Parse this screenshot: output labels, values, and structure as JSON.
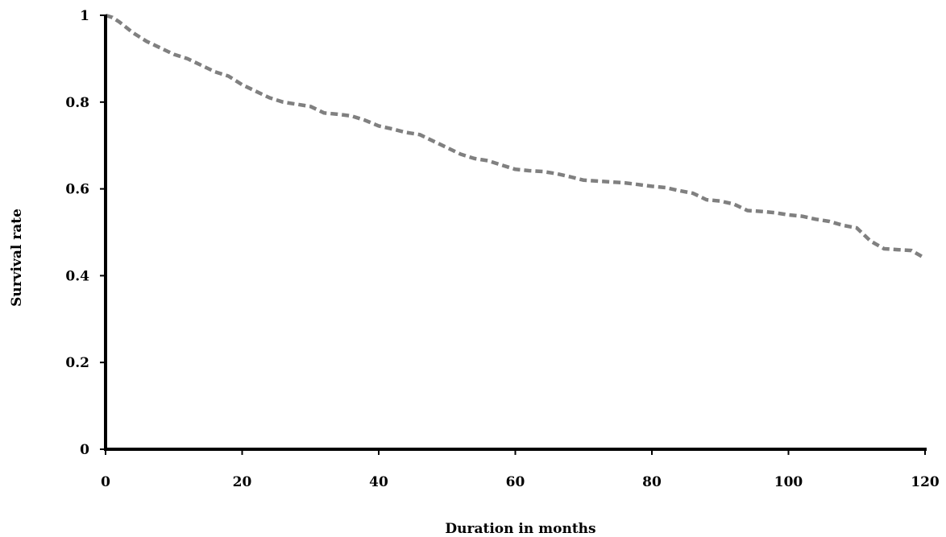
{
  "chart_data": {
    "type": "line",
    "title": "",
    "xlabel": "Duration in months",
    "ylabel": "Survival rate",
    "xlim": [
      0,
      120
    ],
    "ylim": [
      0,
      1
    ],
    "x_ticks": [
      "0",
      "20",
      "40",
      "60",
      "80",
      "100",
      "120"
    ],
    "y_ticks": [
      "0",
      "0.2",
      "0.4",
      "0.6",
      "0.8",
      "1"
    ],
    "grid": false,
    "legend": "none",
    "series": [
      {
        "line_style": "dashed",
        "color": "#808080",
        "x": [
          0,
          1,
          2,
          4,
          6,
          8,
          10,
          12,
          14,
          16,
          18,
          20,
          22,
          24,
          26,
          28,
          30,
          32,
          34,
          36,
          38,
          40,
          42,
          44,
          46,
          48,
          50,
          52,
          54,
          56,
          58,
          60,
          62,
          64,
          66,
          68,
          70,
          72,
          74,
          76,
          78,
          80,
          82,
          84,
          86,
          88,
          90,
          92,
          94,
          96,
          98,
          100,
          102,
          104,
          106,
          108,
          110,
          112,
          114,
          116,
          118,
          120
        ],
        "y": [
          1.0,
          0.995,
          0.985,
          0.96,
          0.94,
          0.925,
          0.91,
          0.9,
          0.885,
          0.87,
          0.86,
          0.84,
          0.825,
          0.81,
          0.8,
          0.795,
          0.79,
          0.775,
          0.772,
          0.768,
          0.758,
          0.745,
          0.738,
          0.73,
          0.725,
          0.71,
          0.695,
          0.68,
          0.67,
          0.665,
          0.655,
          0.645,
          0.642,
          0.64,
          0.635,
          0.628,
          0.62,
          0.618,
          0.616,
          0.614,
          0.61,
          0.606,
          0.603,
          0.596,
          0.59,
          0.575,
          0.572,
          0.565,
          0.55,
          0.548,
          0.545,
          0.54,
          0.537,
          0.53,
          0.525,
          0.516,
          0.51,
          0.48,
          0.462,
          0.46,
          0.458,
          0.44
        ]
      }
    ]
  }
}
